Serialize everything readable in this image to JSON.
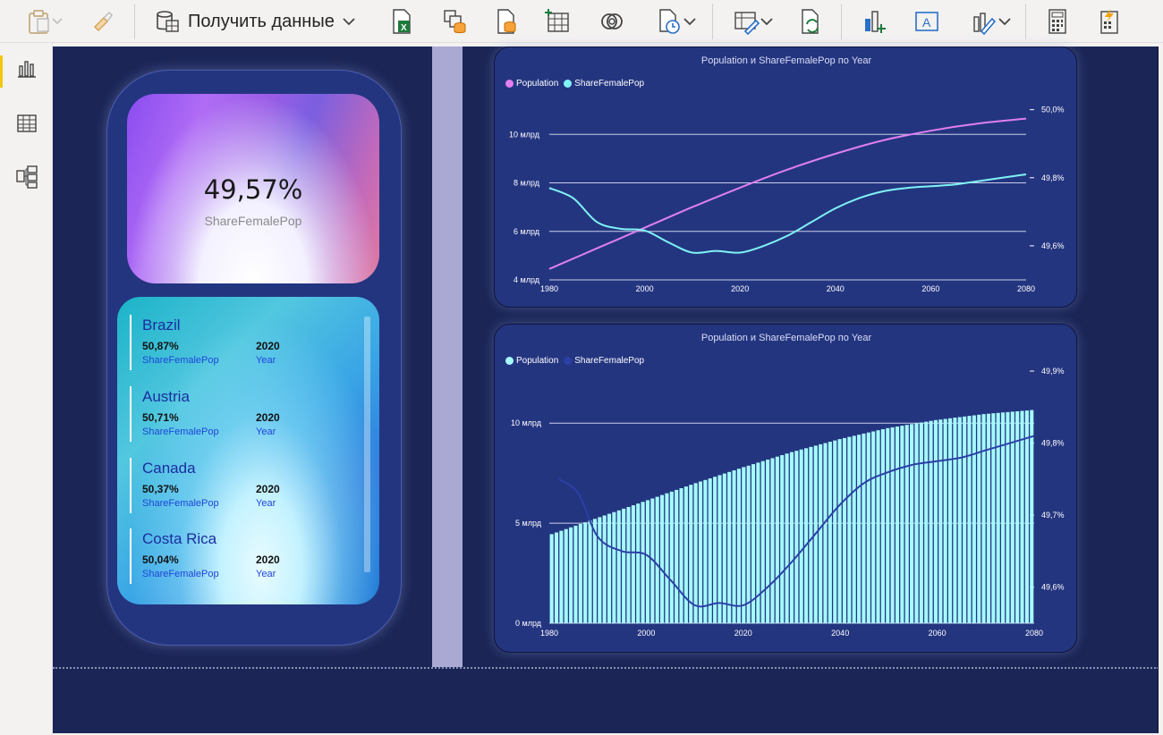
{
  "ribbon": {
    "get_data_label": "Получить данные"
  },
  "leftnav": {
    "items": [
      "report-view",
      "table-view",
      "model-view"
    ]
  },
  "kpi": {
    "value": "49,57%",
    "label": "ShareFemalePop"
  },
  "list": {
    "rows": [
      {
        "country": "Brazil",
        "share": "50,87%",
        "share_label": "ShareFemalePop",
        "year": "2020",
        "year_label": "Year"
      },
      {
        "country": "Austria",
        "share": "50,71%",
        "share_label": "ShareFemalePop",
        "year": "2020",
        "year_label": "Year"
      },
      {
        "country": "Canada",
        "share": "50,37%",
        "share_label": "ShareFemalePop",
        "year": "2020",
        "year_label": "Year"
      },
      {
        "country": "Costa Rica",
        "share": "50,04%",
        "share_label": "ShareFemalePop",
        "year": "2020",
        "year_label": "Year"
      }
    ]
  },
  "colors": {
    "population_line": "#e07ff0",
    "share_line": "#7ff3f5",
    "population_bars": "#a6fbfd",
    "share_dark": "#2b3fa6"
  },
  "chart_data": [
    {
      "type": "line",
      "title": "Population и ShareFemalePop по Year",
      "legend_position": "top-left",
      "x_ticks": [
        "1980",
        "2000",
        "2020",
        "2040",
        "2060",
        "2080"
      ],
      "y_left_ticks": [
        "4 млрд",
        "6 млрд",
        "8 млрд",
        "10 млрд"
      ],
      "y_right_ticks": [
        "49,6%",
        "49,8%",
        "50,0%"
      ],
      "ylim_left": [
        4,
        11.3
      ],
      "ylim_right": [
        49.5,
        50.02
      ],
      "xlim": [
        1980,
        2080
      ],
      "series": [
        {
          "name": "Population",
          "axis": "left",
          "unit": "млрд",
          "x": [
            1980,
            1990,
            2000,
            2010,
            2020,
            2030,
            2040,
            2050,
            2060,
            2070,
            2080
          ],
          "y": [
            4.45,
            5.3,
            6.15,
            7.0,
            7.8,
            8.55,
            9.2,
            9.75,
            10.15,
            10.45,
            10.65
          ]
        },
        {
          "name": "ShareFemalePop",
          "axis": "right",
          "unit": "%",
          "x": [
            1980,
            1985,
            1990,
            1995,
            2000,
            2005,
            2010,
            2015,
            2020,
            2025,
            2030,
            2035,
            2040,
            2045,
            2050,
            2055,
            2060,
            2065,
            2070,
            2075,
            2080
          ],
          "y": [
            49.77,
            49.74,
            49.67,
            49.65,
            49.645,
            49.61,
            49.58,
            49.585,
            49.58,
            49.6,
            49.63,
            49.67,
            49.71,
            49.74,
            49.76,
            49.77,
            49.775,
            49.78,
            49.79,
            49.8,
            49.81
          ]
        }
      ]
    },
    {
      "type": "bar",
      "title": "Population и ShareFemalePop по Year",
      "legend_position": "top-left",
      "x_ticks": [
        "1980",
        "2000",
        "2020",
        "2040",
        "2060",
        "2080"
      ],
      "y_left_ticks": [
        "0 млрд",
        "5 млрд",
        "10 млрд"
      ],
      "y_right_ticks": [
        "49,6%",
        "49,7%",
        "49,8%",
        "49,9%"
      ],
      "ylim_left": [
        0,
        12.6
      ],
      "ylim_right": [
        49.55,
        49.9
      ],
      "xlim": [
        1980,
        2080
      ],
      "series": [
        {
          "name": "Population",
          "axis": "left",
          "kind": "bar",
          "unit": "млрд",
          "x_start": 1980,
          "x_end": 2080,
          "anchors_x": [
            1980,
            1990,
            2000,
            2010,
            2020,
            2030,
            2040,
            2050,
            2060,
            2070,
            2080
          ],
          "anchors_y": [
            4.45,
            5.3,
            6.15,
            7.0,
            7.8,
            8.55,
            9.2,
            9.75,
            10.15,
            10.45,
            10.65
          ]
        },
        {
          "name": "ShareFemalePop",
          "axis": "right",
          "kind": "line",
          "unit": "%",
          "x": [
            1982,
            1986,
            1990,
            1995,
            2000,
            2005,
            2010,
            2015,
            2020,
            2025,
            2030,
            2035,
            2040,
            2045,
            2050,
            2055,
            2060,
            2065,
            2070,
            2075,
            2080
          ],
          "y": [
            49.75,
            49.73,
            49.67,
            49.65,
            49.645,
            49.61,
            49.575,
            49.578,
            49.575,
            49.6,
            49.635,
            49.675,
            49.715,
            49.745,
            49.76,
            49.77,
            49.775,
            49.78,
            49.79,
            49.8,
            49.81
          ]
        }
      ]
    }
  ]
}
